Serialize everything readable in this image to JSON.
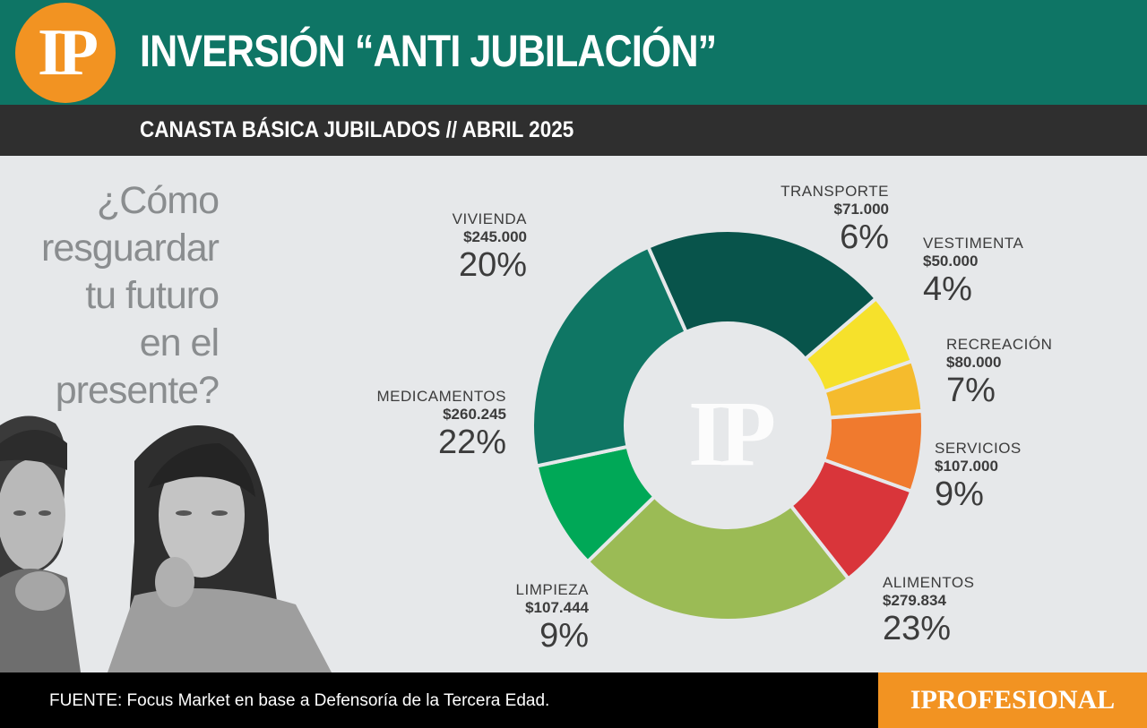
{
  "header": {
    "logo_text": "IP",
    "title": "INVERSIÓN “ANTI JUBILACIÓN”",
    "subtitle": "CANASTA BÁSICA JUBILADOS  //  ABRIL 2025"
  },
  "question": {
    "lines": [
      "¿Cómo",
      "resguardar",
      "tu futuro",
      "en el",
      "presente?"
    ]
  },
  "chart_data": {
    "type": "pie",
    "title": "",
    "center_watermark": "IP",
    "colors": {
      "vivienda": "#08544b",
      "transporte": "#f6e12b",
      "vestimenta": "#f5bb2d",
      "recreacion": "#f07a2e",
      "servicios": "#d9353a",
      "alimentos": "#9bbb55",
      "limpieza": "#00a857",
      "medicamentos": "#0f7664"
    },
    "slices": [
      {
        "key": "vivienda",
        "label": "VIVIENDA",
        "amount": "$245.000",
        "percent": "20%",
        "value": 245000
      },
      {
        "key": "transporte",
        "label": "TRANSPORTE",
        "amount": "$71.000",
        "percent": "6%",
        "value": 71000
      },
      {
        "key": "vestimenta",
        "label": "VESTIMENTA",
        "amount": "$50.000",
        "percent": "4%",
        "value": 50000
      },
      {
        "key": "recreacion",
        "label": "RECREACIÓN",
        "amount": "$80.000",
        "percent": "7%",
        "value": 80000
      },
      {
        "key": "servicios",
        "label": "SERVICIOS",
        "amount": "$107.000",
        "percent": "9%",
        "value": 107000
      },
      {
        "key": "alimentos",
        "label": "ALIMENTOS",
        "amount": "$279.834",
        "percent": "23%",
        "value": 279834
      },
      {
        "key": "limpieza",
        "label": "LIMPIEZA",
        "amount": "$107.444",
        "percent": "9%",
        "value": 107444
      },
      {
        "key": "medicamentos",
        "label": "MEDICAMENTOS",
        "amount": "$260.245",
        "percent": "22%",
        "value": 260245
      }
    ]
  },
  "footer": {
    "source": "FUENTE: Focus Market en base a Defensoría de la Tercera Edad.",
    "brand": "IPROFESIONAL"
  }
}
